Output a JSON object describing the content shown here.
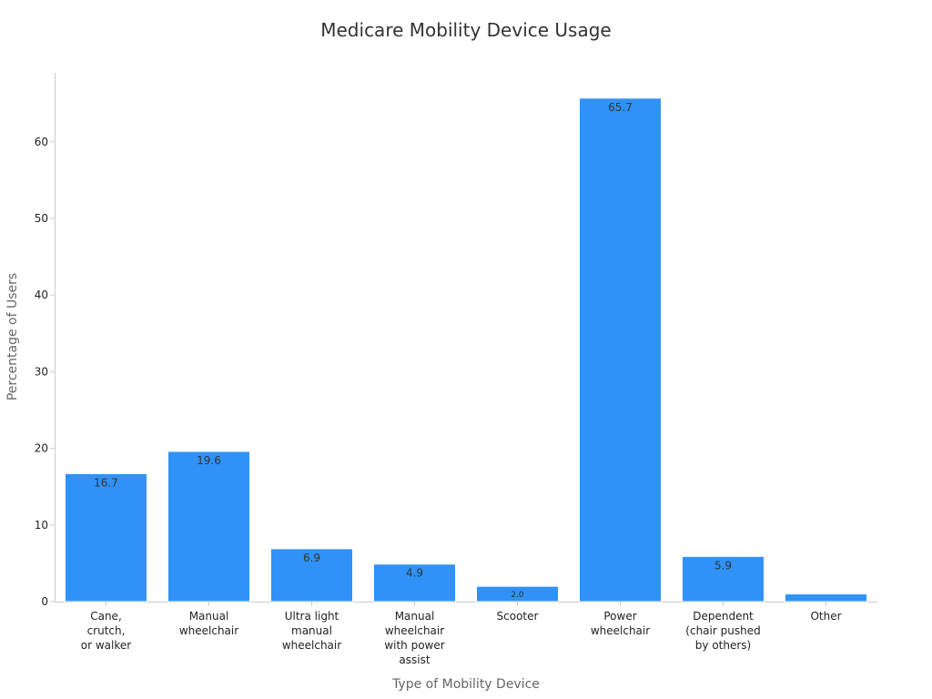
{
  "chart_data": {
    "type": "bar",
    "title": "Medicare Mobility Device Usage",
    "xlabel": "Type of Mobility Device",
    "ylabel": "Percentage of Users",
    "categories": [
      [
        "Cane,",
        "crutch,",
        "or walker"
      ],
      [
        "Manual",
        "wheelchair"
      ],
      [
        "Ultra light",
        "manual",
        "wheelchair"
      ],
      [
        "Manual",
        "wheelchair",
        "with power",
        "assist"
      ],
      [
        "Scooter"
      ],
      [
        "Power",
        "wheelchair"
      ],
      [
        "Dependent",
        "(chair pushed",
        "by others)"
      ],
      [
        "Other"
      ]
    ],
    "values": [
      16.7,
      19.6,
      6.9,
      4.9,
      2.0,
      65.7,
      5.9,
      1.0
    ],
    "data_labels": [
      "16.7",
      "19.6",
      "6.9",
      "4.9",
      "2.0",
      "65.7",
      "5.9",
      ""
    ],
    "ylim": [
      0,
      69
    ],
    "yticks": [
      0,
      10,
      20,
      30,
      40,
      50,
      60
    ],
    "grid": false,
    "legend": "none",
    "colors": {
      "bar": "#3092f7",
      "bar_edge": "#ffffff",
      "label": "#333333",
      "title": "#333333",
      "axis_title": "#666666",
      "tick": "#222222",
      "axis": "#cccccc"
    }
  }
}
